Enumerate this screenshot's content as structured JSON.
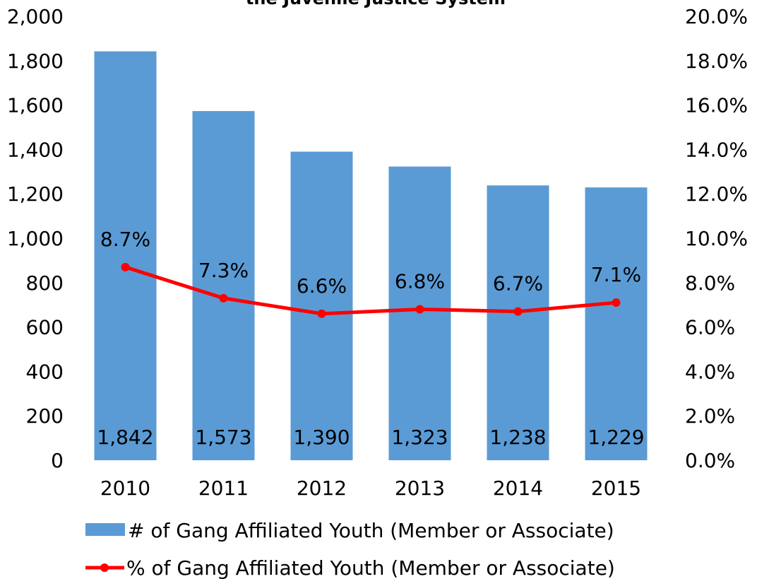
{
  "chart_data": {
    "type": "bar",
    "title": "the Juvenile Justice System",
    "categories": [
      "2010",
      "2011",
      "2012",
      "2013",
      "2014",
      "2015"
    ],
    "series": [
      {
        "name": "# of Gang Affiliated Youth (Member or Associate)",
        "type": "bar",
        "axis": "left",
        "color": "#5B9BD5",
        "values": [
          1842,
          1573,
          1390,
          1323,
          1238,
          1229
        ],
        "labels": [
          "1,842",
          "1,573",
          "1,390",
          "1,323",
          "1,238",
          "1,229"
        ]
      },
      {
        "name": "% of Gang Affiliated Youth (Member or Associate)",
        "type": "line",
        "axis": "right",
        "color": "#FF0000",
        "values": [
          8.7,
          7.3,
          6.6,
          6.8,
          6.7,
          7.1
        ],
        "labels": [
          "8.7%",
          "7.3%",
          "6.6%",
          "6.8%",
          "6.7%",
          "7.1%"
        ]
      }
    ],
    "y_left": {
      "ylim": [
        0,
        2000
      ],
      "ticks": [
        0,
        200,
        400,
        600,
        800,
        1000,
        1200,
        1400,
        1600,
        1800,
        2000
      ],
      "tick_labels": [
        "0",
        "200",
        "400",
        "600",
        "800",
        "1,000",
        "1,200",
        "1,400",
        "1,600",
        "1,800",
        "2,000"
      ]
    },
    "y_right": {
      "ylim": [
        0,
        20
      ],
      "ticks": [
        0,
        2,
        4,
        6,
        8,
        10,
        12,
        14,
        16,
        18,
        20
      ],
      "tick_labels": [
        "0.0%",
        "2.0%",
        "4.0%",
        "6.0%",
        "8.0%",
        "10.0%",
        "12.0%",
        "14.0%",
        "16.0%",
        "18.0%",
        "20.0%"
      ]
    },
    "grid": false,
    "legend_position": "bottom"
  }
}
